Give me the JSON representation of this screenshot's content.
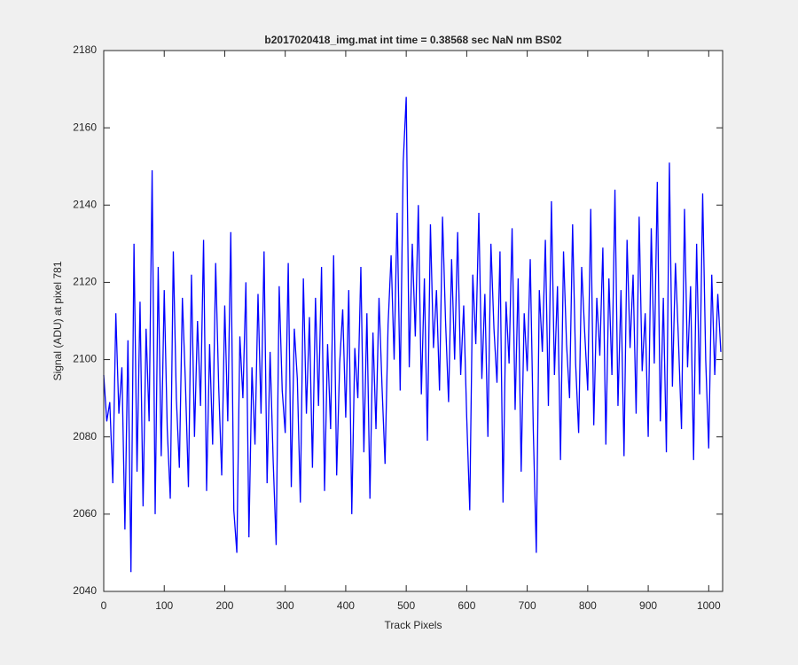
{
  "chart_data": {
    "type": "line",
    "title": "b2017020418_img.mat int time = 0.38568 sec  NaN nm BS02",
    "xlabel": "Track Pixels",
    "ylabel": "Signal (ADU) at pixel 781",
    "color": "#0000ff",
    "xlim": [
      0,
      1023
    ],
    "xticks": [
      0,
      100,
      200,
      300,
      400,
      500,
      600,
      700,
      800,
      900,
      1000
    ],
    "ylim": [
      2040,
      2180
    ],
    "yticks": [
      2040,
      2060,
      2080,
      2100,
      2120,
      2140,
      2160,
      2180
    ],
    "x": [
      0,
      5,
      10,
      15,
      20,
      25,
      30,
      35,
      40,
      45,
      50,
      55,
      60,
      65,
      70,
      75,
      80,
      85,
      90,
      95,
      100,
      105,
      110,
      115,
      120,
      125,
      130,
      135,
      140,
      145,
      150,
      155,
      160,
      165,
      170,
      175,
      180,
      185,
      190,
      195,
      200,
      205,
      210,
      215,
      220,
      225,
      230,
      235,
      240,
      245,
      250,
      255,
      260,
      265,
      270,
      275,
      280,
      285,
      290,
      295,
      300,
      305,
      310,
      315,
      320,
      325,
      330,
      335,
      340,
      345,
      350,
      355,
      360,
      365,
      370,
      375,
      380,
      385,
      390,
      395,
      400,
      405,
      410,
      415,
      420,
      425,
      430,
      435,
      440,
      445,
      450,
      455,
      460,
      465,
      470,
      475,
      480,
      485,
      490,
      495,
      500,
      505,
      510,
      515,
      520,
      525,
      530,
      535,
      540,
      545,
      550,
      555,
      560,
      565,
      570,
      575,
      580,
      585,
      590,
      595,
      600,
      605,
      610,
      615,
      620,
      625,
      630,
      635,
      640,
      645,
      650,
      655,
      660,
      665,
      670,
      675,
      680,
      685,
      690,
      695,
      700,
      705,
      710,
      715,
      720,
      725,
      730,
      735,
      740,
      745,
      750,
      755,
      760,
      765,
      770,
      775,
      780,
      785,
      790,
      795,
      800,
      805,
      810,
      815,
      820,
      825,
      830,
      835,
      840,
      845,
      850,
      855,
      860,
      865,
      870,
      875,
      880,
      885,
      890,
      895,
      900,
      905,
      910,
      915,
      920,
      925,
      930,
      935,
      940,
      945,
      950,
      955,
      960,
      965,
      970,
      975,
      980,
      985,
      990,
      995,
      1000,
      1005,
      1010,
      1015,
      1020
    ],
    "values": [
      2096,
      2084,
      2089,
      2068,
      2112,
      2086,
      2098,
      2056,
      2105,
      2045,
      2130,
      2071,
      2115,
      2062,
      2108,
      2084,
      2149,
      2060,
      2124,
      2075,
      2118,
      2082,
      2064,
      2128,
      2090,
      2072,
      2116,
      2094,
      2067,
      2122,
      2080,
      2110,
      2088,
      2131,
      2066,
      2104,
      2078,
      2125,
      2093,
      2070,
      2114,
      2084,
      2133,
      2061,
      2050,
      2106,
      2090,
      2120,
      2054,
      2098,
      2078,
      2117,
      2086,
      2128,
      2068,
      2102,
      2074,
      2052,
      2119,
      2092,
      2081,
      2125,
      2067,
      2108,
      2095,
      2063,
      2121,
      2086,
      2111,
      2072,
      2116,
      2088,
      2124,
      2066,
      2104,
      2082,
      2127,
      2070,
      2099,
      2113,
      2085,
      2118,
      2060,
      2103,
      2090,
      2124,
      2076,
      2112,
      2064,
      2107,
      2082,
      2116,
      2093,
      2073,
      2109,
      2127,
      2100,
      2138,
      2092,
      2151,
      2168,
      2098,
      2130,
      2106,
      2140,
      2091,
      2121,
      2079,
      2135,
      2103,
      2118,
      2092,
      2137,
      2110,
      2089,
      2126,
      2100,
      2133,
      2096,
      2114,
      2085,
      2061,
      2122,
      2104,
      2138,
      2095,
      2117,
      2080,
      2130,
      2108,
      2094,
      2128,
      2063,
      2115,
      2099,
      2134,
      2087,
      2121,
      2071,
      2112,
      2097,
      2126,
      2082,
      2050,
      2118,
      2102,
      2131,
      2088,
      2141,
      2096,
      2119,
      2074,
      2128,
      2104,
      2090,
      2135,
      2099,
      2081,
      2124,
      2107,
      2092,
      2139,
      2083,
      2116,
      2101,
      2129,
      2078,
      2121,
      2096,
      2144,
      2088,
      2118,
      2075,
      2131,
      2103,
      2122,
      2086,
      2137,
      2097,
      2112,
      2080,
      2134,
      2099,
      2146,
      2084,
      2116,
      2076,
      2151,
      2093,
      2125,
      2105,
      2082,
      2139,
      2098,
      2119,
      2074,
      2130,
      2091,
      2143,
      2100,
      2077,
      2122,
      2096,
      2117,
      2102
    ]
  }
}
